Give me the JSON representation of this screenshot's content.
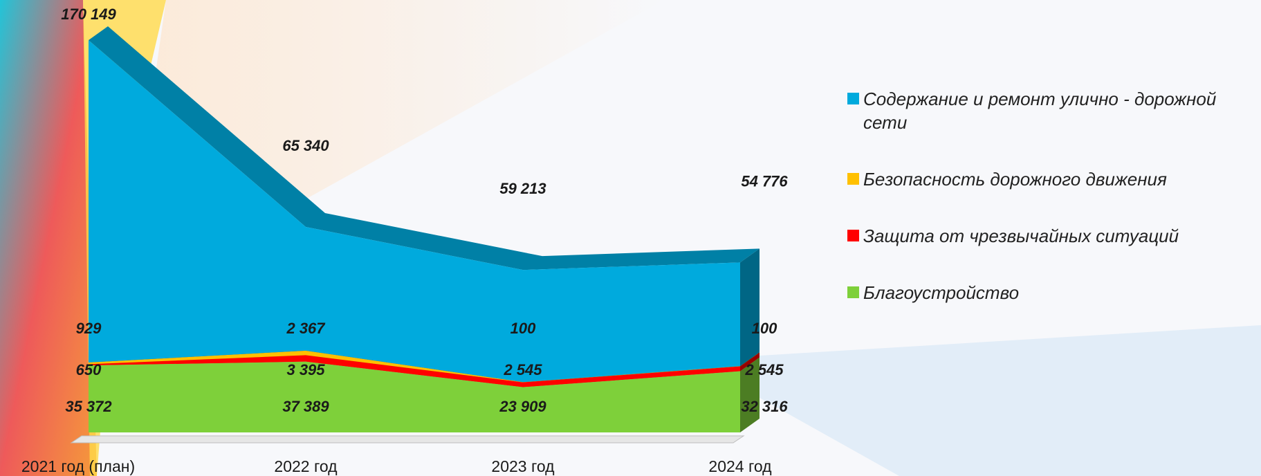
{
  "chart_data": {
    "type": "stacked-area",
    "categories": [
      "2021 год (план)",
      "2022 год",
      "2023 год",
      "2024 год"
    ],
    "series": [
      {
        "name": "Благоустройство",
        "color": "#7ed03a",
        "values": [
          35372,
          37389,
          23909,
          32316
        ],
        "value_labels": [
          "35 372",
          "37 389",
          "23 909",
          "32 316"
        ]
      },
      {
        "name": "Защита от чрезвычайных ситуаций",
        "color": "#ff0000",
        "values": [
          650,
          3395,
          2545,
          2545
        ],
        "value_labels": [
          "650",
          "3 395",
          "2 545",
          "2 545"
        ]
      },
      {
        "name": "Безопасность дорожного движения",
        "color": "#ffc000",
        "values": [
          929,
          2367,
          100,
          100
        ],
        "value_labels": [
          "929",
          "2 367",
          "100",
          "100"
        ]
      },
      {
        "name": "Содержание и ремонт улично - дорожной сети",
        "color": "#00aadd",
        "values": [
          170149,
          65340,
          59213,
          54776
        ],
        "value_labels": [
          "170 149",
          "65 340",
          "59 213",
          "54 776"
        ]
      }
    ]
  }
}
